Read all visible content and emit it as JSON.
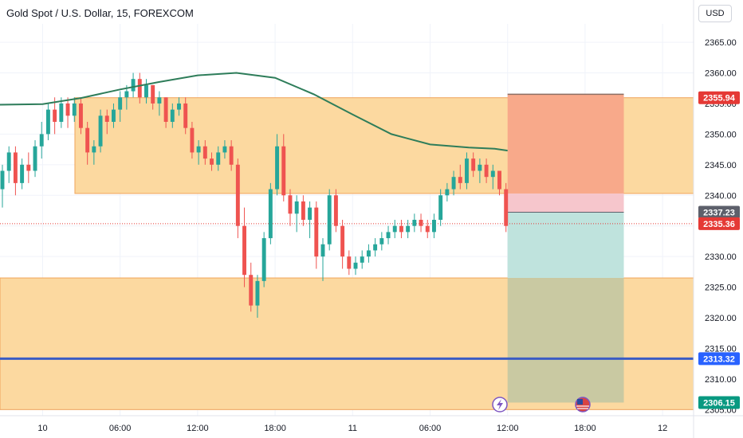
{
  "header": {
    "title": "Gold Spot / U.S. Dollar, 15, FOREXCOM",
    "currency_button": "USD"
  },
  "colors": {
    "background": "#ffffff",
    "zone_fill": "#fcd9a0",
    "zone_border": "#f0a35a",
    "stop_zone": "#f8a98a",
    "target_zone": "#bfe3dd",
    "target_overlap": "#c9c9a2",
    "entry_pink": "#f6c6cc",
    "up_candle": "#26a69a",
    "down_candle": "#ef5350",
    "moving_average": "#2e7d5a",
    "support_line": "#3b5cc4",
    "tag_red": "#e53935",
    "tag_grey": "#5d606b",
    "tag_blue": "#2962ff",
    "tag_green": "#089981"
  },
  "chart_data": {
    "type": "candlestick",
    "symbol": "Gold Spot / U.S. Dollar",
    "interval": "15",
    "exchange": "FOREXCOM",
    "y_axis": {
      "ticks": [
        "2365.00",
        "2360.00",
        "2355.00",
        "2350.00",
        "2345.00",
        "2340.00",
        "2335.00",
        "2330.00",
        "2325.00",
        "2320.00",
        "2315.00",
        "2310.00",
        "2305.00"
      ],
      "range": [
        2304,
        2368
      ]
    },
    "x_axis": {
      "ticks": [
        {
          "label": "10",
          "hours": 0
        },
        {
          "label": "06:00",
          "hours": 6
        },
        {
          "label": "12:00",
          "hours": 12
        },
        {
          "label": "18:00",
          "hours": 18
        },
        {
          "label": "11",
          "hours": 24
        },
        {
          "label": "06:00",
          "hours": 30
        },
        {
          "label": "12:00",
          "hours": 36
        },
        {
          "label": "18:00",
          "hours": 42
        },
        {
          "label": "12",
          "hours": 48
        }
      ],
      "range_hours": [
        -3.3,
        50.4
      ]
    },
    "price_tags": [
      {
        "label": "2355.94",
        "value": 2355.94,
        "color": "tag_red"
      },
      {
        "label": "2337.23",
        "value": 2337.23,
        "color": "tag_grey"
      },
      {
        "label": "2335.36",
        "value": 2335.36,
        "color": "tag_red"
      },
      {
        "label": "2313.32",
        "value": 2313.32,
        "color": "tag_blue"
      },
      {
        "label": "2306.15",
        "value": 2306.15,
        "color": "tag_green"
      }
    ],
    "zones": [
      {
        "name": "resistance-zone",
        "from_hours": 2.5,
        "to_hours": 50.4,
        "top": 2355.94,
        "bottom": 2340.3
      },
      {
        "name": "support-zone",
        "from_hours": -3.3,
        "to_hours": 50.4,
        "top": 2326.5,
        "bottom": 2305.0
      }
    ],
    "position": {
      "from_hours": 36,
      "to_hours": 45,
      "stop": 2356.5,
      "entry_upper": 2340.3,
      "entry": 2337.23,
      "target": 2306.15
    },
    "horizontal_lines": [
      {
        "name": "support-line",
        "value": 2313.32,
        "color": "support_line"
      },
      {
        "name": "last-price-line",
        "value": 2335.36,
        "color": "tag_red"
      }
    ],
    "moving_average": [
      [
        -3.3,
        2354.8
      ],
      [
        0,
        2354.9
      ],
      [
        3,
        2355.9
      ],
      [
        6,
        2357.3
      ],
      [
        9,
        2358.5
      ],
      [
        12,
        2359.6
      ],
      [
        15,
        2360.0
      ],
      [
        18,
        2359.2
      ],
      [
        21,
        2356.5
      ],
      [
        24,
        2353.2
      ],
      [
        27,
        2350.0
      ],
      [
        30,
        2348.3
      ],
      [
        33,
        2347.8
      ],
      [
        35,
        2347.6
      ],
      [
        36,
        2347.3
      ]
    ],
    "candles": [
      [
        2341,
        2345,
        2338,
        2344
      ],
      [
        2344,
        2348,
        2342,
        2347
      ],
      [
        2347,
        2348,
        2340,
        2342
      ],
      [
        2342,
        2346,
        2341,
        2345
      ],
      [
        2345,
        2347,
        2342,
        2344
      ],
      [
        2344,
        2349,
        2343,
        2348
      ],
      [
        2348,
        2352,
        2346,
        2350
      ],
      [
        2350,
        2355,
        2349,
        2354
      ],
      [
        2354,
        2356,
        2350,
        2352
      ],
      [
        2352,
        2356,
        2351,
        2355
      ],
      [
        2355,
        2356,
        2351,
        2353
      ],
      [
        2353,
        2356,
        2352,
        2355
      ],
      [
        2355,
        2356,
        2350,
        2351
      ],
      [
        2351,
        2352,
        2345,
        2347
      ],
      [
        2347,
        2349,
        2345,
        2348
      ],
      [
        2348,
        2354,
        2347,
        2353
      ],
      [
        2353,
        2354,
        2350,
        2352
      ],
      [
        2352,
        2355,
        2351,
        2354
      ],
      [
        2354,
        2357,
        2352,
        2356
      ],
      [
        2356,
        2358,
        2354,
        2357
      ],
      [
        2357,
        2360,
        2356,
        2359
      ],
      [
        2359,
        2360,
        2355,
        2356
      ],
      [
        2356,
        2359,
        2355,
        2358
      ],
      [
        2358,
        2358,
        2354,
        2355
      ],
      [
        2355,
        2357,
        2353,
        2356
      ],
      [
        2356,
        2356,
        2351,
        2352
      ],
      [
        2352,
        2355,
        2351,
        2354
      ],
      [
        2354,
        2356,
        2353,
        2355
      ],
      [
        2355,
        2356,
        2350,
        2351
      ],
      [
        2351,
        2352,
        2346,
        2347
      ],
      [
        2347,
        2349,
        2345,
        2348
      ],
      [
        2348,
        2349,
        2345,
        2346
      ],
      [
        2346,
        2347,
        2344,
        2345
      ],
      [
        2345,
        2348,
        2344,
        2347
      ],
      [
        2347,
        2349,
        2346,
        2348
      ],
      [
        2348,
        2349,
        2344,
        2345
      ],
      [
        2345,
        2346,
        2333,
        2335
      ],
      [
        2335,
        2338,
        2325,
        2327
      ],
      [
        2327,
        2329,
        2321,
        2322
      ],
      [
        2322,
        2327,
        2320,
        2326
      ],
      [
        2326,
        2334,
        2325,
        2333
      ],
      [
        2333,
        2342,
        2332,
        2341
      ],
      [
        2341,
        2350,
        2340,
        2348
      ],
      [
        2348,
        2350,
        2339,
        2340
      ],
      [
        2340,
        2341,
        2335,
        2337
      ],
      [
        2337,
        2340,
        2334,
        2339
      ],
      [
        2339,
        2340,
        2335,
        2336
      ],
      [
        2336,
        2339,
        2333,
        2338
      ],
      [
        2338,
        2339,
        2328,
        2330
      ],
      [
        2330,
        2333,
        2326,
        2332
      ],
      [
        2332,
        2341,
        2331,
        2340
      ],
      [
        2340,
        2341,
        2334,
        2335
      ],
      [
        2335,
        2336,
        2328,
        2330
      ],
      [
        2330,
        2331,
        2327,
        2328
      ],
      [
        2328,
        2330,
        2327,
        2329
      ],
      [
        2329,
        2331,
        2328,
        2330
      ],
      [
        2330,
        2332,
        2329,
        2331
      ],
      [
        2331,
        2333,
        2330,
        2332
      ],
      [
        2332,
        2334,
        2331,
        2333
      ],
      [
        2333,
        2335,
        2332,
        2334
      ],
      [
        2334,
        2336,
        2333,
        2335
      ],
      [
        2335,
        2336,
        2333,
        2334
      ],
      [
        2334,
        2336,
        2333,
        2335
      ],
      [
        2335,
        2337,
        2334,
        2336
      ],
      [
        2336,
        2337,
        2334,
        2335
      ],
      [
        2335,
        2336,
        2333,
        2334
      ],
      [
        2334,
        2337,
        2333,
        2336
      ],
      [
        2336,
        2341,
        2335,
        2340
      ],
      [
        2340,
        2342,
        2339,
        2341
      ],
      [
        2341,
        2344,
        2340,
        2343
      ],
      [
        2343,
        2345,
        2341,
        2342
      ],
      [
        2342,
        2347,
        2341,
        2346
      ],
      [
        2346,
        2347,
        2343,
        2344
      ],
      [
        2344,
        2346,
        2342,
        2345
      ],
      [
        2345,
        2346,
        2342,
        2343
      ],
      [
        2343,
        2345,
        2341,
        2344
      ],
      [
        2344,
        2344,
        2340,
        2341
      ],
      [
        2341,
        2342,
        2334,
        2335
      ]
    ]
  }
}
